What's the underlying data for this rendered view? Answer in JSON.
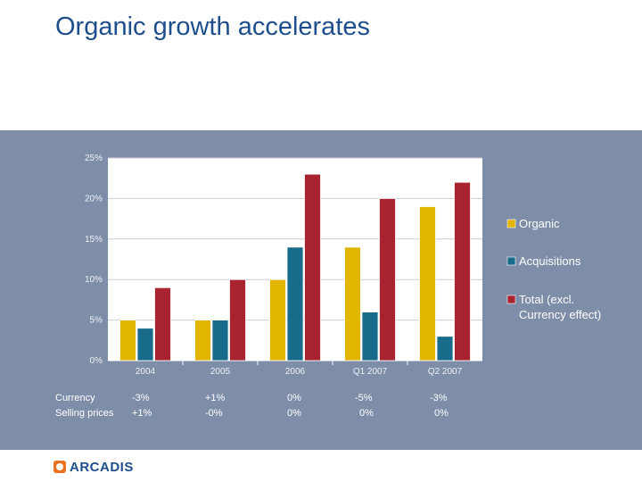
{
  "slide": {
    "title": "Organic growth accelerates"
  },
  "colors": {
    "organic": "#e2b600",
    "acquisitions": "#186b8a",
    "total": "#a8232f",
    "panel": "#7f8ea8",
    "plot_bg": "#ffffff"
  },
  "chart_data": {
    "type": "bar",
    "title": "",
    "xlabel": "",
    "ylabel": "",
    "ylim": [
      0,
      25
    ],
    "yticks": [
      "0%",
      "5%",
      "10%",
      "15%",
      "20%",
      "25%"
    ],
    "categories": [
      "2004",
      "2005",
      "2006",
      "Q1 2007",
      "Q2 2007"
    ],
    "series": [
      {
        "name": "Organic",
        "values": [
          5,
          5,
          10,
          14,
          19
        ]
      },
      {
        "name": "Acquisitions",
        "values": [
          4,
          5,
          14,
          6,
          3
        ]
      },
      {
        "name": "Total (excl. Currency effect)",
        "values": [
          9,
          10,
          23,
          20,
          22
        ]
      }
    ],
    "legend": {
      "position": "right",
      "entries": [
        {
          "lines": [
            "Organic"
          ]
        },
        {
          "lines": [
            "Acquisitions"
          ]
        },
        {
          "lines": [
            "Total (excl.",
            "Currency effect)"
          ]
        }
      ]
    }
  },
  "table": {
    "row_labels": [
      "Currency",
      "Selling prices"
    ],
    "columns": [
      {
        "currency": "-3%",
        "selling": "+1%"
      },
      {
        "currency": "+1%",
        "selling": "-0%"
      },
      {
        "currency": "0%",
        "selling": "0%"
      },
      {
        "currency": "-5%",
        "selling": "0%"
      },
      {
        "currency": "-3%",
        "selling": "0%"
      }
    ]
  },
  "logo": {
    "text": "ARCADIS"
  }
}
